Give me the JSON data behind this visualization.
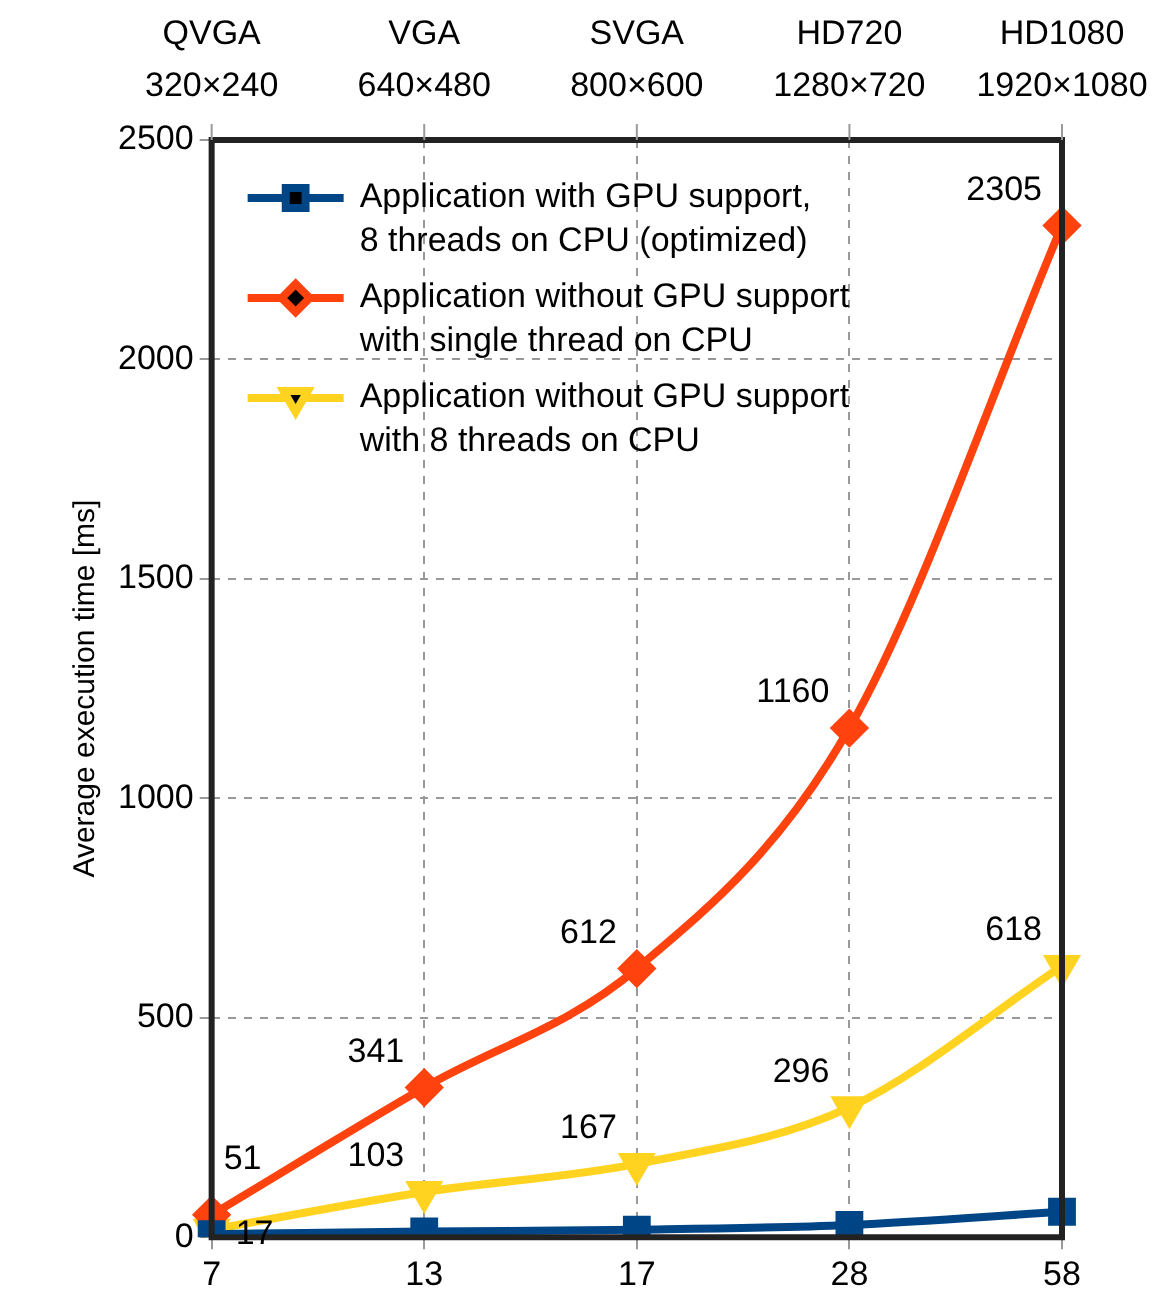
{
  "chart_data": {
    "type": "line",
    "ylabel": "Average execution time [ms]",
    "categories": [
      "7",
      "13",
      "17",
      "28",
      "58"
    ],
    "ylim": [
      0,
      2500
    ],
    "yticks": [
      0,
      500,
      1000,
      1500,
      2000,
      2500
    ],
    "grid": true,
    "legend": "top left",
    "line_style": "solid",
    "annotations": [
      "QVGA\n320×240",
      "VGA\n640×480",
      "SVGA\n800×600",
      "HD720\n1280×720",
      "HD1080\n1920×1080"
    ],
    "series": [
      {
        "name": "Application with GPU support,\n8 threads on CPU (optimized)",
        "color": "#004586",
        "marker": "square",
        "values": [
          7,
          13,
          17,
          28,
          58
        ]
      },
      {
        "name": "Application without GPU support\nwith single thread on CPU",
        "color": "#ff420e",
        "marker": "diamond",
        "values": [
          51,
          341,
          612,
          1160,
          2305
        ],
        "value_labels": [
          "51",
          "341",
          "612",
          "1160",
          "2305"
        ]
      },
      {
        "name": "Application without GPU support\nwith 8 threads on CPU",
        "color": "#ffd320",
        "marker": "triangle-down",
        "values": [
          17,
          103,
          167,
          296,
          618
        ],
        "value_labels": [
          "17",
          "103",
          "167",
          "296",
          "618"
        ]
      }
    ]
  }
}
